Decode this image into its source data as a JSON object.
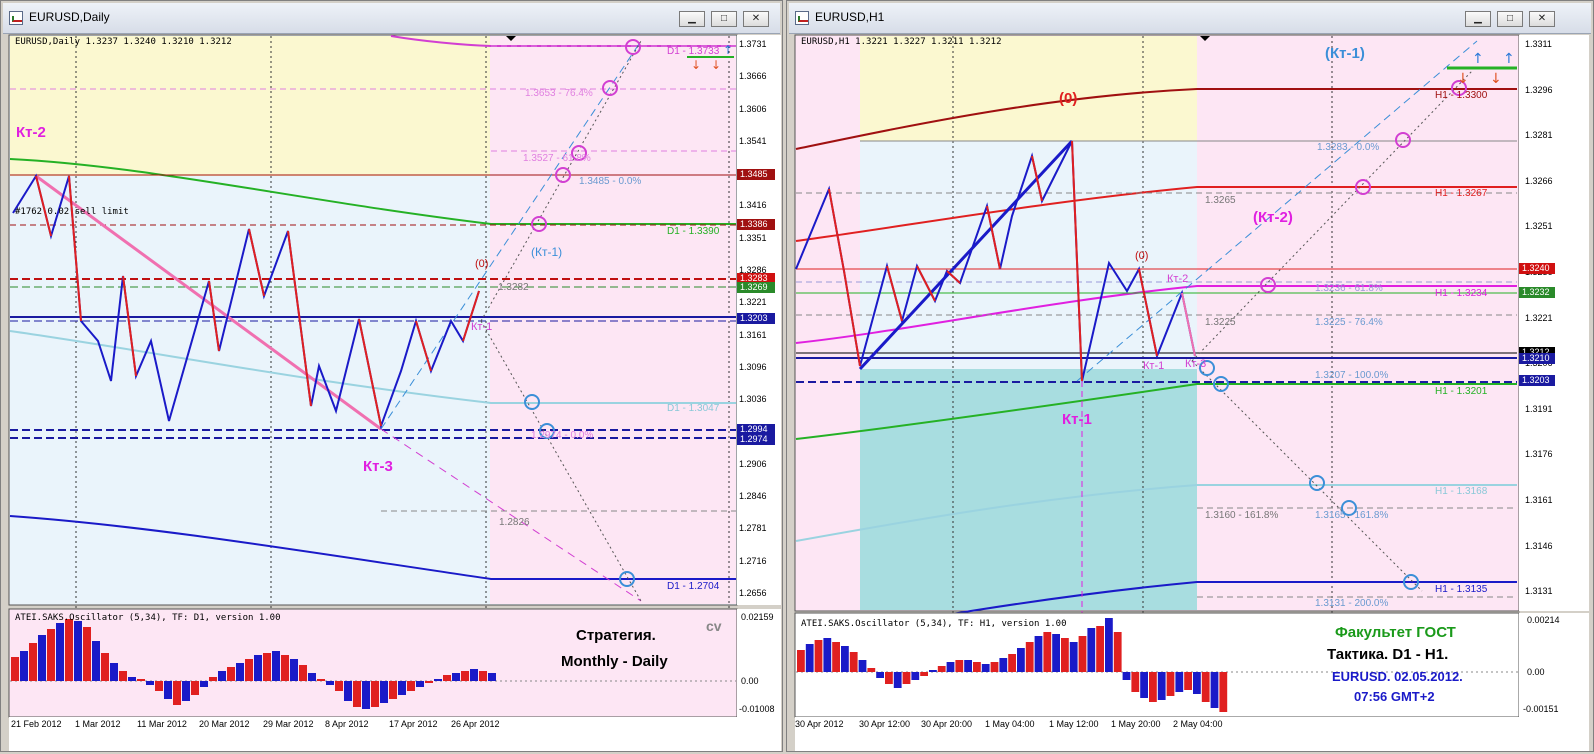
{
  "left": {
    "title": "EURUSD,Daily",
    "info": "EURUSD,Daily  1.3237 1.3240 1.3210 1.3212",
    "order_label": "#1762 0.02 sell limit",
    "annotations": {
      "kt2": "Кт-2",
      "kt3": "Кт-3",
      "kt1": "Кт-1",
      "kt1p": "(Кт-1)",
      "zero": "(0)",
      "fib1": "1.3653 - 76.4%",
      "fib2": "1.3527 - 61.8%",
      "fib3": "1.3485 - 0.0%",
      "fib4": "1.2974 - 0.0%",
      "lvl1": "1.3282",
      "lvl2": "1.2826",
      "d1a": "D1 - 1.3733",
      "d1b": "D1 - 1.3390",
      "d1c": "D1 - 1.3047",
      "d1d": "D1 - 1.2704"
    },
    "price_axis": [
      "1.3731",
      "1.3666",
      "1.3606",
      "1.3541",
      "1.3476",
      "1.3416",
      "1.3351",
      "1.3286",
      "1.3221",
      "1.3161",
      "1.3096",
      "1.3036",
      "1.2971",
      "1.2906",
      "1.2846",
      "1.2781",
      "1.2716",
      "1.2656"
    ],
    "price_tags": [
      "1.3485",
      "1.3386",
      "1.3283",
      "1.3269",
      "1.3203",
      "1.2994",
      "1.2974"
    ],
    "osc_label": "ATEI.SAKS.Oscillator (5,34), TF: D1,  version 1.00",
    "osc_axis": [
      "0.02159",
      "0.00",
      "-0.01008"
    ],
    "strategy_line1": "Стратегия.",
    "strategy_line2": "Monthly - Daily",
    "cv": "cv",
    "dates": [
      "21 Feb 2012",
      "1 Mar 2012",
      "11 Mar 2012",
      "20 Mar 2012",
      "29 Mar 2012",
      "8 Apr 2012",
      "17 Apr 2012",
      "26 Apr 2012"
    ]
  },
  "right": {
    "title": "EURUSD,H1",
    "info": "EURUSD,H1  1.3221 1.3227 1.3211 1.3212",
    "annotations": {
      "kt1p": "(Кт-1)",
      "kt2p": "(Кт-2)",
      "zero": "(0)",
      "zero2": "(0)",
      "kt1big": "Кт-1",
      "kt1s": "Кт-1",
      "kt2s": "Кт-2",
      "kt3s": "Кт-3",
      "fib_a": "1.3283 - 0.0%",
      "lvl_a": "1.3265",
      "fib_b": "1.3236 - 61.8%",
      "lvl_b": "1.3225",
      "fib_c": "1.3225 - 76.4%",
      "fib_d": "1.3207 - 100.0%",
      "fib_e": "1.3160 - 161.8%",
      "fib_f": "1.3165 - 161.8%",
      "fib_g": "1.3131 - 200.0%",
      "h1a": "H1 - 1.3300",
      "h1b": "H1 - 1.3267",
      "h1c": "H1 - 1.3234",
      "h1d": "H1 - 1.3201",
      "h1e": "H1 - 1.3168",
      "h1f": "H1 - 1.3135"
    },
    "price_axis": [
      "1.3311",
      "1.3296",
      "1.3281",
      "1.3266",
      "1.3251",
      "1.3236",
      "1.3221",
      "1.3206",
      "1.3191",
      "1.3176",
      "1.3161",
      "1.3146",
      "1.3131"
    ],
    "price_tags": [
      "1.3240",
      "1.3232",
      "1.3212",
      "1.3210",
      "1.3203"
    ],
    "osc_label": "ATEI.SAKS.Oscillator (5,34), TF: H1,  version 1.00",
    "osc_axis": [
      "0.00214",
      "0.00",
      "-0.00151"
    ],
    "tactic_line1": "Факультет ГОСТ",
    "tactic_line2": "Тактика. D1 - H1.",
    "tactic_line3": "EURUSD. 02.05.2012.",
    "tactic_line4": "07:56  GMT+2",
    "dates": [
      "30 Apr 2012",
      "30 Apr 12:00",
      "30 Apr 20:00",
      "1 May 04:00",
      "1 May 12:00",
      "1 May 20:00",
      "2 May 04:00"
    ]
  },
  "colors": {
    "yellow_zone": "#fbf8d0",
    "pink_zone": "#fde6f4",
    "lightblue_zone": "#eaf4fb",
    "teal_zone": "#a8dde0"
  }
}
